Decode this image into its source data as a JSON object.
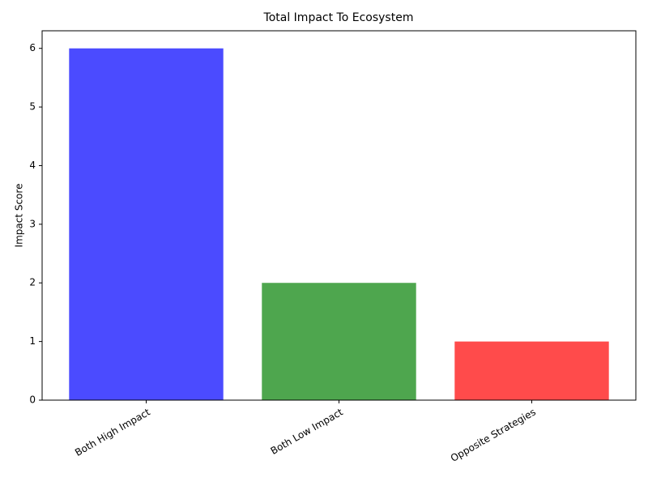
{
  "chart_data": {
    "type": "bar",
    "title": "Total Impact To Ecosystem",
    "y_label": "Impact Score",
    "categories": [
      "Both High Impact",
      "Both Low Impact",
      "Opposite Strategies"
    ],
    "values": [
      6,
      2,
      1
    ],
    "colors": [
      "#4b4bff",
      "#4ea64e",
      "#ff4b4b"
    ],
    "ylim": [
      0,
      6.3
    ],
    "yticks": [
      0,
      1,
      2,
      3,
      4,
      5,
      6
    ],
    "grid": false
  }
}
